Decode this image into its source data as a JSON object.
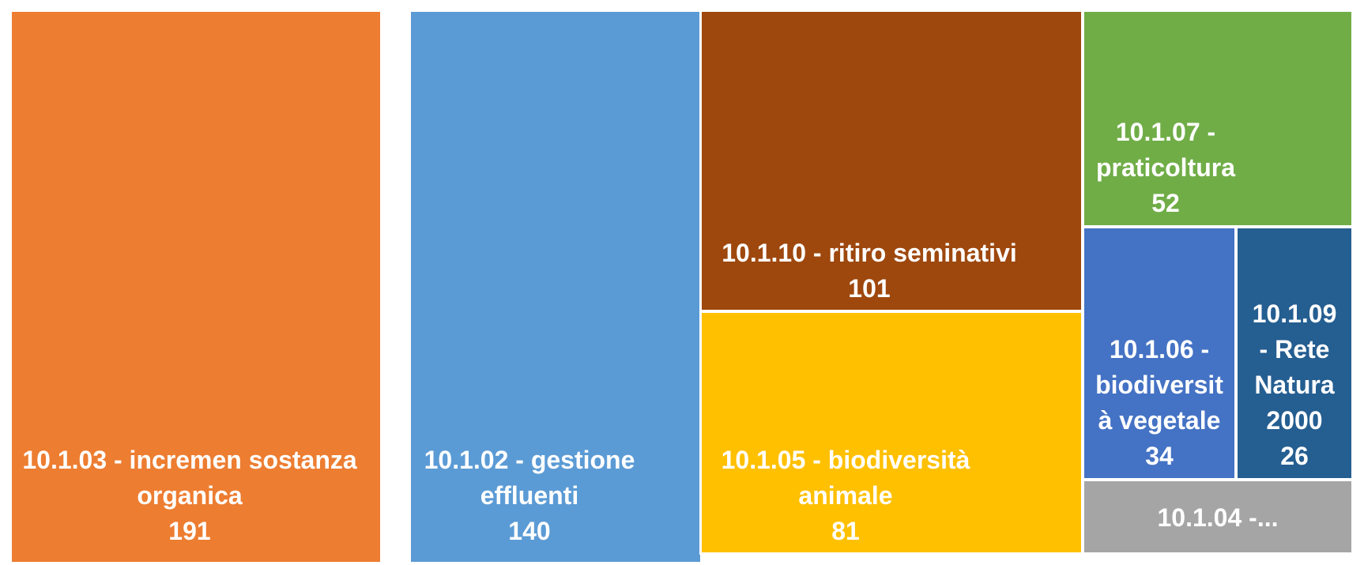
{
  "chart_data": {
    "type": "treemap",
    "items": [
      {
        "code": "10.1.03",
        "label_lines": [
          "10.1.03 - incremen sostanza",
          "organica"
        ],
        "value": 191,
        "value_label": "191",
        "color": "#ED7D31"
      },
      {
        "code": "10.1.02",
        "label_lines": [
          "10.1.02 - gestione",
          "effluenti"
        ],
        "value": 140,
        "value_label": "140",
        "color": "#5B9BD5"
      },
      {
        "code": "10.1.10",
        "label_lines": [
          "10.1.10 - ritiro seminativi"
        ],
        "value": 101,
        "value_label": "101",
        "color": "#9E480E"
      },
      {
        "code": "10.1.05",
        "label_lines": [
          "10.1.05 - biodiversità",
          "animale"
        ],
        "value": 81,
        "value_label": "81",
        "color": "#FFC000"
      },
      {
        "code": "10.1.07",
        "label_lines": [
          "10.1.07 -",
          "praticoltura"
        ],
        "value": 52,
        "value_label": "52",
        "color": "#70AD47"
      },
      {
        "code": "10.1.06",
        "label_lines": [
          "10.1.06 -",
          "biodiversit",
          "à vegetale"
        ],
        "value": 34,
        "value_label": "34",
        "color": "#4472C4"
      },
      {
        "code": "10.1.09",
        "label_lines": [
          "10.1.09",
          "- Rete",
          "Natura",
          "2000"
        ],
        "value": 26,
        "value_label": "26",
        "color": "#255E91"
      },
      {
        "code": "10.1.04",
        "label_lines": [
          "10.1.04 -..."
        ],
        "value": null,
        "value_label": "",
        "color": "#A5A5A5"
      }
    ]
  }
}
